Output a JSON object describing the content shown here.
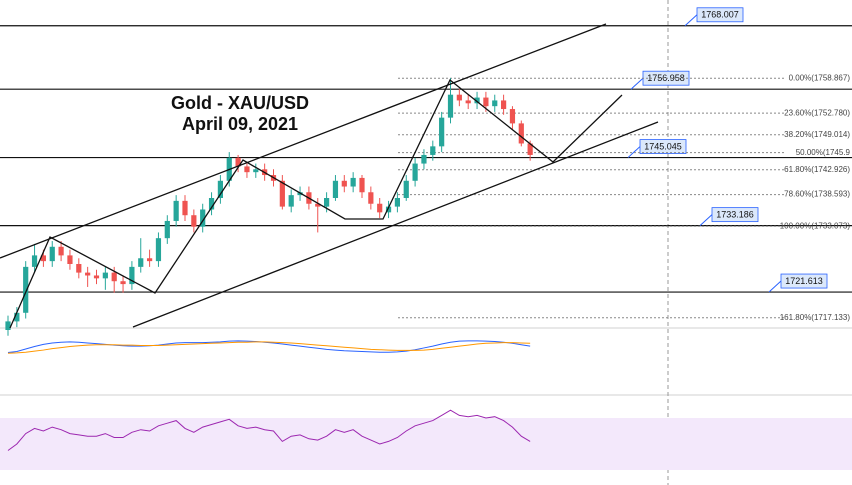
{
  "chart_data": {
    "type": "candlestick",
    "title": "Gold - XAU/USD",
    "subtitle": "April 09, 2021",
    "up_color": "#26a69a",
    "down_color": "#ef5350",
    "ylim": [
      1715,
      1772.5
    ],
    "open": [
      1715,
      1716.5,
      1718,
      1726,
      1728,
      1727,
      1729.5,
      1728,
      1726.5,
      1725,
      1724.5,
      1724,
      1725,
      1723.5,
      1723,
      1726,
      1727.5,
      1727,
      1731,
      1734,
      1737.5,
      1735,
      1733,
      1736,
      1738,
      1741,
      1745,
      1743.5,
      1742.5,
      1743,
      1742,
      1741,
      1736.5,
      1738.5,
      1739,
      1737,
      1736.5,
      1738,
      1741,
      1740,
      1741.5,
      1739,
      1737,
      1735.5,
      1736.5,
      1738,
      1741,
      1744,
      1745.5,
      1747,
      1752,
      1756,
      1755,
      1754.5,
      1755.5,
      1754,
      1755,
      1753.5,
      1751,
      1747.5
    ],
    "high": [
      1717.5,
      1719,
      1727,
      1730,
      1729,
      1730.5,
      1730.5,
      1729,
      1727.5,
      1726,
      1725.5,
      1726,
      1726,
      1724.5,
      1727,
      1731,
      1729,
      1732,
      1735,
      1738.5,
      1738.5,
      1736,
      1737,
      1739,
      1742,
      1746,
      1745.5,
      1744,
      1744,
      1744,
      1743,
      1742,
      1739.5,
      1740,
      1740,
      1738,
      1739,
      1742,
      1742,
      1742.5,
      1742,
      1740,
      1738,
      1737.5,
      1739,
      1742,
      1745,
      1746.5,
      1748,
      1753,
      1758.9,
      1757,
      1756,
      1756.5,
      1756.5,
      1756,
      1756,
      1754,
      1751.5,
      1748
    ],
    "low": [
      1714,
      1715.5,
      1717,
      1725,
      1726,
      1726,
      1727,
      1725.5,
      1724,
      1722.5,
      1723,
      1722,
      1721.5,
      1721.5,
      1722,
      1725,
      1726,
      1726,
      1730,
      1733,
      1734,
      1732,
      1732,
      1735,
      1737,
      1740,
      1742.5,
      1741.5,
      1741.5,
      1741,
      1740,
      1736,
      1735.5,
      1737.5,
      1736,
      1732,
      1735.5,
      1737.5,
      1739,
      1739,
      1738,
      1736,
      1734.5,
      1734.5,
      1735.5,
      1737.5,
      1740,
      1743,
      1744.5,
      1746,
      1751,
      1754,
      1753.5,
      1753.5,
      1753,
      1753,
      1752.5,
      1750,
      1747,
      1744.5
    ],
    "close": [
      1716.5,
      1718,
      1726,
      1728,
      1727,
      1729.5,
      1728,
      1726.5,
      1725,
      1724.5,
      1724,
      1725,
      1723.5,
      1723,
      1726,
      1727.5,
      1727,
      1731,
      1734,
      1737.5,
      1735,
      1733,
      1736,
      1738,
      1741,
      1745,
      1743.5,
      1742.5,
      1743,
      1742,
      1741,
      1736.5,
      1738.5,
      1739,
      1737,
      1736.5,
      1738,
      1741,
      1740,
      1741.5,
      1739,
      1737,
      1735.5,
      1736.5,
      1738,
      1741,
      1744,
      1745.5,
      1747,
      1752,
      1756,
      1755,
      1754.5,
      1755.5,
      1754,
      1755,
      1753.5,
      1751,
      1747.5,
      1745.5
    ],
    "levels": [
      1768.007,
      1756.958,
      1745.045,
      1733.186,
      1721.613
    ],
    "fib_levels": [
      {
        "price": 1758.867,
        "label": "0.00%(1758.867)"
      },
      {
        "price": 1752.78,
        "label": "23.60%(1752.780)"
      },
      {
        "price": 1749.014,
        "label": "38.20%(1749.014)"
      },
      {
        "price": 1745.9,
        "label": "50.00%(1745.9"
      },
      {
        "price": 1742.926,
        "label": "61.80%(1742.926)"
      },
      {
        "price": 1738.593,
        "label": "78.60%(1738.593)"
      },
      {
        "price": 1733.073,
        "label": "100.00%(1733.073)"
      },
      {
        "price": 1717.133,
        "label": "161.80%(1717.133)"
      }
    ],
    "macd": {
      "ylim": [
        -3,
        6
      ],
      "series": [
        {
          "color": "#2962ff",
          "values": [
            0.5,
            0.8,
            1.5,
            2.2,
            2.8,
            3.2,
            3.4,
            3.5,
            3.4,
            3.2,
            3.0,
            2.8,
            2.6,
            2.4,
            2.3,
            2.3,
            2.4,
            2.6,
            2.9,
            3.2,
            3.3,
            3.3,
            3.3,
            3.4,
            3.5,
            3.7,
            3.8,
            3.7,
            3.6,
            3.4,
            3.2,
            2.9,
            2.6,
            2.3,
            2.0,
            1.7,
            1.4,
            1.2,
            1.0,
            0.9,
            0.8,
            0.7,
            0.6,
            0.6,
            0.7,
            0.9,
            1.3,
            1.8,
            2.3,
            2.9,
            3.4,
            3.7,
            3.8,
            3.8,
            3.7,
            3.6,
            3.4,
            3.1,
            2.7,
            2.3
          ]
        },
        {
          "color": "#ff9800",
          "values": [
            0.3,
            0.4,
            0.6,
            0.9,
            1.2,
            1.6,
            1.9,
            2.2,
            2.4,
            2.6,
            2.7,
            2.7,
            2.7,
            2.6,
            2.6,
            2.5,
            2.5,
            2.5,
            2.6,
            2.7,
            2.8,
            2.9,
            3.0,
            3.1,
            3.2,
            3.3,
            3.4,
            3.4,
            3.5,
            3.5,
            3.4,
            3.3,
            3.2,
            3.0,
            2.8,
            2.6,
            2.4,
            2.2,
            2.0,
            1.8,
            1.6,
            1.4,
            1.3,
            1.2,
            1.1,
            1.1,
            1.1,
            1.2,
            1.4,
            1.7,
            2.0,
            2.3,
            2.6,
            2.9,
            3.1,
            3.2,
            3.3,
            3.3,
            3.2,
            3.1
          ]
        }
      ]
    },
    "rsi": {
      "ylim": [
        20,
        85
      ],
      "band": [
        30,
        70
      ],
      "color": "#9c27b0",
      "values": [
        45,
        50,
        58,
        62,
        60,
        63,
        61,
        58,
        57,
        56,
        56,
        58,
        55,
        55,
        59,
        61,
        60,
        64,
        66,
        68,
        62,
        59,
        63,
        65,
        67,
        69,
        64,
        62,
        63,
        61,
        60,
        52,
        56,
        57,
        54,
        53,
        56,
        61,
        59,
        61,
        56,
        53,
        50,
        52,
        55,
        60,
        64,
        66,
        68,
        72,
        76,
        72,
        71,
        72,
        70,
        71,
        68,
        63,
        56,
        52
      ]
    }
  }
}
